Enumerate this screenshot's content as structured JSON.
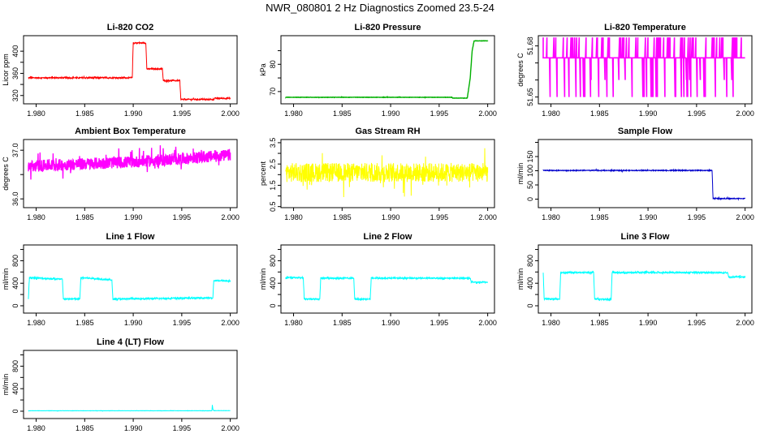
{
  "page_title": "NWR_080801  2 Hz Diagnostics Zoomed 23.5-24",
  "x_ticks": [
    1.98,
    1.985,
    1.99,
    1.995,
    2.0
  ],
  "x_tick_labels": [
    "1.980",
    "1.985",
    "1.990",
    "1.995",
    "2.000"
  ],
  "xlim": [
    1.9787,
    2.0007
  ],
  "chart_data": [
    {
      "id": "co2",
      "type": "line",
      "title": "Li-820 CO2",
      "ylabel": "Licor ppm",
      "color": "#ff0000",
      "ylim": [
        305,
        428
      ],
      "yticks": [
        320,
        340,
        360,
        380,
        400
      ],
      "ytick_labels": [
        "320",
        "360",
        "400"
      ],
      "ytick_label_values": [
        320,
        360,
        400
      ],
      "noise": 1.2,
      "series": [
        {
          "name": "CO2",
          "x": [
            1.9792,
            1.9899,
            1.99,
            1.9913,
            1.9914,
            1.993,
            1.9931,
            1.9948,
            1.9949,
            1.9983,
            1.9984,
            2.0
          ],
          "y": [
            352,
            352,
            415,
            415,
            368,
            368,
            347,
            347,
            313,
            313,
            315,
            315
          ]
        }
      ]
    },
    {
      "id": "pressure",
      "type": "line",
      "title": "Li-820 Pressure",
      "ylabel": "kPa",
      "color": "#00b000",
      "ylim": [
        65.5,
        90.5
      ],
      "yticks": [
        70,
        75,
        80,
        85
      ],
      "ytick_labels": [
        "70",
        "80"
      ],
      "ytick_label_values": [
        70,
        80
      ],
      "noise": 0.05,
      "series": [
        {
          "name": "Pressure",
          "x": [
            1.9792,
            1.9963,
            1.9964,
            1.9979,
            1.9982,
            1.9984,
            1.9986,
            2.0
          ],
          "y": [
            67.9,
            67.9,
            67.6,
            67.6,
            75,
            85,
            88.6,
            88.6
          ]
        }
      ]
    },
    {
      "id": "temperature",
      "type": "line",
      "title": "Li-820 Temperature",
      "ylabel": "degrees C",
      "color": "#ff00ff",
      "ylim": [
        51.646,
        51.686
      ],
      "yticks": [
        51.65,
        51.66,
        51.67,
        51.68
      ],
      "ytick_labels": [
        "51.65",
        "51.68"
      ],
      "ytick_label_values": [
        51.65,
        51.68
      ],
      "noise": 0,
      "levels": [
        51.65,
        51.66,
        51.673,
        51.685
      ],
      "base_level": 51.673,
      "series": [
        {
          "name": "Temperature",
          "x": [
            1.9792,
            2.0
          ],
          "y": [
            51.673,
            51.673
          ]
        }
      ]
    },
    {
      "id": "ambient",
      "type": "line",
      "title": "Ambient Box Temperature",
      "ylabel": "degrees C",
      "color": "#ff00ff",
      "ylim": [
        35.82,
        37.22
      ],
      "yticks": [
        36.0,
        36.5,
        37.0
      ],
      "ytick_labels": [
        "36.0",
        "37.0"
      ],
      "ytick_label_values": [
        36.0,
        37.0
      ],
      "noise": 0.12,
      "series": [
        {
          "name": "Ambient",
          "x": [
            1.9792,
            1.985,
            1.99,
            1.995,
            2.0
          ],
          "y": [
            36.67,
            36.72,
            36.76,
            36.82,
            36.9
          ]
        }
      ]
    },
    {
      "id": "rh",
      "type": "line",
      "title": "Gas Stream RH",
      "ylabel": "percent",
      "color": "#ffff00",
      "ylim": [
        0.45,
        3.65
      ],
      "yticks": [
        0.5,
        1.0,
        1.5,
        2.0,
        2.5,
        3.0,
        3.5
      ],
      "ytick_labels": [
        "0.5",
        "1.5",
        "2.5",
        "3.5"
      ],
      "ytick_label_values": [
        0.5,
        1.5,
        2.5,
        3.5
      ],
      "noise": 0.45,
      "series": [
        {
          "name": "RH",
          "x": [
            1.9792,
            2.0
          ],
          "y": [
            2.1,
            2.1
          ]
        }
      ]
    },
    {
      "id": "sample_flow",
      "type": "line",
      "title": "Sample Flow",
      "ylabel": "ml/min",
      "color": "#0000cc",
      "ylim": [
        -30,
        210
      ],
      "yticks": [
        0,
        50,
        100,
        150,
        200
      ],
      "ytick_labels": [
        "0",
        "50",
        "100",
        "150"
      ],
      "ytick_label_values": [
        0,
        50,
        100,
        150
      ],
      "noise": 1.5,
      "series": [
        {
          "name": "Sample Flow",
          "x": [
            1.9792,
            1.9966,
            1.9967,
            2.0
          ],
          "y": [
            101,
            101,
            2,
            2
          ]
        }
      ]
    },
    {
      "id": "line1",
      "type": "line",
      "title": "Line 1 Flow",
      "ylabel": "ml/min",
      "color": "#00ffff",
      "ylim": [
        -130,
        1080
      ],
      "yticks": [
        0,
        200,
        400,
        600,
        800,
        1000
      ],
      "ytick_labels": [
        "0",
        "400",
        "800"
      ],
      "ytick_label_values": [
        0,
        400,
        800
      ],
      "noise": 14,
      "series": [
        {
          "name": "Line 1",
          "x": [
            1.9792,
            1.9793,
            1.9827,
            1.9828,
            1.9845,
            1.9846,
            1.9878,
            1.9879,
            1.9982,
            1.9983,
            2.0
          ],
          "y": [
            130,
            500,
            470,
            120,
            120,
            500,
            460,
            120,
            140,
            450,
            440
          ]
        }
      ]
    },
    {
      "id": "line2",
      "type": "line",
      "title": "Line 2 Flow",
      "ylabel": "ml/min",
      "color": "#00ffff",
      "ylim": [
        -130,
        1080
      ],
      "yticks": [
        0,
        200,
        400,
        600,
        800,
        1000
      ],
      "ytick_labels": [
        "0",
        "400",
        "800"
      ],
      "ytick_label_values": [
        0,
        400,
        800
      ],
      "noise": 12,
      "series": [
        {
          "name": "Line 2",
          "x": [
            1.9792,
            1.981,
            1.9811,
            1.9827,
            1.9828,
            1.9862,
            1.9863,
            1.9879,
            1.988,
            1.9982,
            1.9983,
            2.0
          ],
          "y": [
            500,
            500,
            120,
            120,
            490,
            490,
            120,
            120,
            490,
            490,
            420,
            420
          ]
        }
      ]
    },
    {
      "id": "line3",
      "type": "line",
      "title": "Line 3 Flow",
      "ylabel": "ml/min",
      "color": "#00ffff",
      "ylim": [
        -130,
        1080
      ],
      "yticks": [
        0,
        200,
        400,
        600,
        800,
        1000
      ],
      "ytick_labels": [
        "0",
        "400",
        "800"
      ],
      "ytick_label_values": [
        0,
        400,
        800
      ],
      "noise": 14,
      "series": [
        {
          "name": "Line 3",
          "x": [
            1.9792,
            1.9793,
            1.9809,
            1.981,
            1.9844,
            1.9845,
            1.9862,
            1.9863,
            1.9982,
            1.9983,
            2.0
          ],
          "y": [
            600,
            120,
            120,
            590,
            590,
            120,
            110,
            590,
            590,
            510,
            510
          ]
        }
      ]
    },
    {
      "id": "line4",
      "type": "line",
      "title": "Line 4 (LT) Flow",
      "ylabel": "ml/min",
      "color": "#00ffff",
      "ylim": [
        -130,
        1080
      ],
      "yticks": [
        0,
        200,
        400,
        600,
        800,
        1000
      ],
      "ytick_labels": [
        "0",
        "400",
        "800"
      ],
      "ytick_label_values": [
        0,
        400,
        800
      ],
      "noise": 2,
      "series": [
        {
          "name": "Line 4",
          "x": [
            1.9792,
            1.9981,
            1.99815,
            1.9982,
            1.9983,
            2.0
          ],
          "y": [
            8,
            8,
            110,
            40,
            10,
            10
          ]
        }
      ]
    }
  ]
}
